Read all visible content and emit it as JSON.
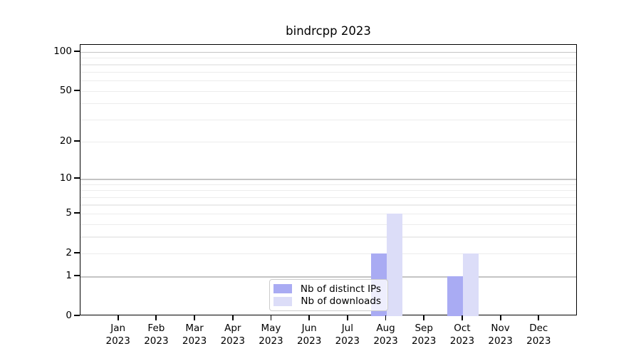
{
  "page": {
    "background": "#ffffff"
  },
  "chart_data": {
    "type": "bar",
    "title": "bindrcpp 2023",
    "year": "2023",
    "months": [
      "Jan",
      "Feb",
      "Mar",
      "Apr",
      "May",
      "Jun",
      "Jul",
      "Aug",
      "Sep",
      "Oct",
      "Nov",
      "Dec"
    ],
    "categories": [
      "Jan 2023",
      "Feb 2023",
      "Mar 2023",
      "Apr 2023",
      "May 2023",
      "Jun 2023",
      "Jul 2023",
      "Aug 2023",
      "Sep 2023",
      "Oct 2023",
      "Nov 2023",
      "Dec 2023"
    ],
    "series": [
      {
        "name": "Nb of distinct IPs",
        "color": "#a9abf3",
        "values": [
          0,
          0,
          0,
          0,
          0,
          0,
          0,
          2,
          0,
          1,
          0,
          0
        ]
      },
      {
        "name": "Nb of downloads",
        "color": "#dcddf8",
        "values": [
          0,
          0,
          0,
          0,
          0,
          0,
          0,
          5,
          0,
          2,
          0,
          0
        ]
      }
    ],
    "xlabel": "",
    "ylabel": "",
    "yticks": [
      0,
      1,
      2,
      5,
      10,
      20,
      50,
      100
    ],
    "major_gridlines": [
      1,
      10,
      100
    ],
    "minor_gridlines": [
      2,
      3,
      4,
      5,
      6,
      7,
      8,
      9,
      20,
      30,
      40,
      50,
      60,
      70,
      80,
      90
    ],
    "ylim": [
      0,
      113
    ],
    "scale": "log1p",
    "grid": "on",
    "legend_position": "lower-center",
    "colors": {
      "bar_distinct_ips": "#a9abf3",
      "bar_downloads": "#dcddf8",
      "major_grid": "#c4c4c4",
      "minor_grid": "#ececec",
      "axis": "#000000",
      "legend_border": "#cccccc",
      "background": "#ffffff"
    }
  }
}
